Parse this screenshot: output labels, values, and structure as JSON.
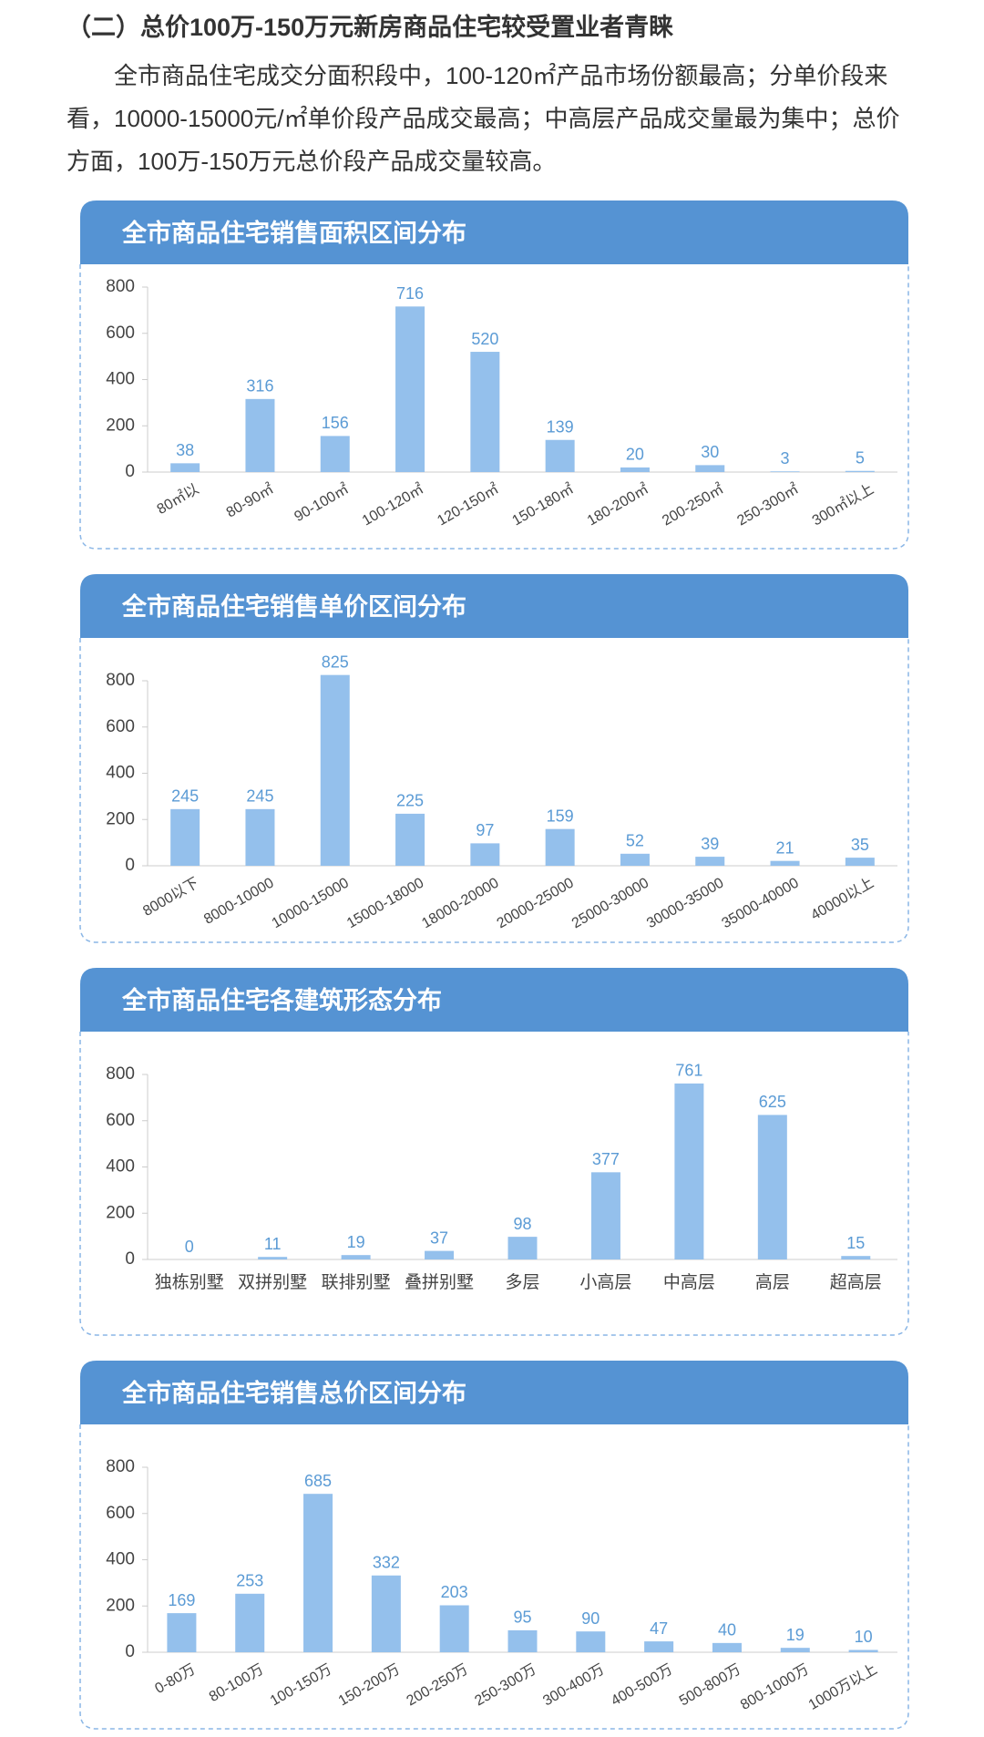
{
  "heading": "（二）总价100万-150万元新房商品住宅较受置业者青睐",
  "paragraph": "全市商品住宅成交分面积段中，100-120㎡产品市场份额最高；分单价段来看，10000-15000元/㎡单价段产品成交最高；中高层产品成交量最为集中；总价方面，100万-150万元总价段产品成交量较高。",
  "chart_data": [
    {
      "type": "bar",
      "title": "全市商品住宅销售面积区间分布",
      "categories": [
        "80㎡以",
        "80-90㎡",
        "90-100㎡",
        "100-120㎡",
        "120-150㎡",
        "150-180㎡",
        "180-200㎡",
        "200-250㎡",
        "250-300㎡",
        "300㎡以上"
      ],
      "values": [
        38,
        316,
        156,
        716,
        520,
        139,
        20,
        30,
        3,
        5
      ],
      "color": "#94c0ec",
      "ylim": [
        0,
        800
      ],
      "yticks": [
        0,
        200,
        400,
        600,
        800
      ]
    },
    {
      "type": "bar",
      "title": "全市商品住宅销售单价区间分布",
      "categories": [
        "8000以下",
        "8000-10000",
        "10000-15000",
        "15000-18000",
        "18000-20000",
        "20000-25000",
        "25000-30000",
        "30000-35000",
        "35000-40000",
        "40000以上"
      ],
      "values": [
        245,
        245,
        825,
        225,
        97,
        159,
        52,
        39,
        21,
        35
      ],
      "color": "#94c0ec",
      "ylim": [
        0,
        800
      ],
      "yticks": [
        0,
        200,
        400,
        600,
        800
      ]
    },
    {
      "type": "bar",
      "title": "全市商品住宅各建筑形态分布",
      "categories": [
        "独栋别墅",
        "双拼别墅",
        "联排别墅",
        "叠拼别墅",
        "多层",
        "小高层",
        "中高层",
        "高层",
        "超高层"
      ],
      "values": [
        0,
        11,
        19,
        37,
        98,
        377,
        761,
        625,
        15
      ],
      "color": "#94c0ec",
      "ylim": [
        0,
        800
      ],
      "yticks": [
        0,
        200,
        400,
        600,
        800
      ]
    },
    {
      "type": "bar",
      "title": "全市商品住宅销售总价区间分布",
      "categories": [
        "0-80万",
        "80-100万",
        "100-150万",
        "150-200万",
        "200-250万",
        "250-300万",
        "300-400万",
        "400-500万",
        "500-800万",
        "800-1000万",
        "1000万以上"
      ],
      "values": [
        169,
        253,
        685,
        332,
        203,
        95,
        90,
        47,
        40,
        19,
        10
      ],
      "color": "#94c0ec",
      "ylim": [
        0,
        800
      ],
      "yticks": [
        0,
        200,
        400,
        600,
        800
      ]
    }
  ]
}
